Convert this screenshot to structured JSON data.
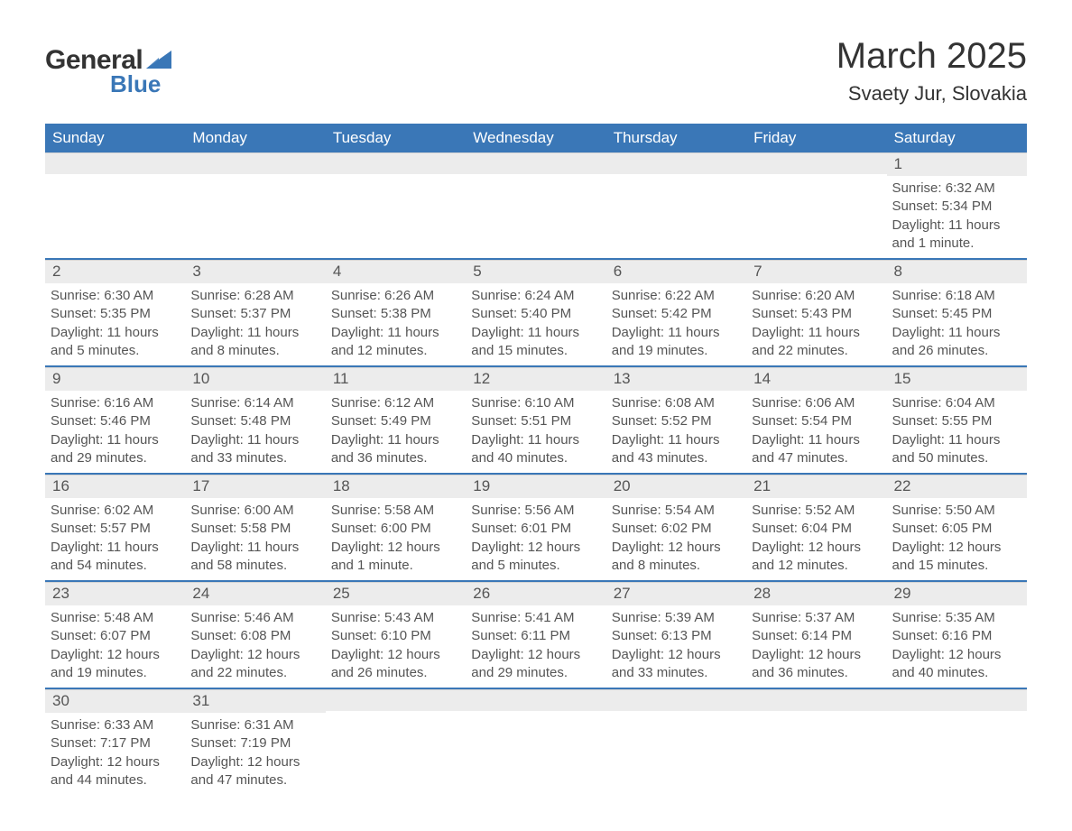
{
  "logo": {
    "text_general": "General",
    "text_blue": "Blue",
    "sail_color": "#3a77b7",
    "general_color": "#333333"
  },
  "title": "March 2025",
  "location": "Svaety Jur, Slovakia",
  "colors": {
    "header_bg": "#3a77b7",
    "header_text": "#ffffff",
    "daynum_bg": "#ececec",
    "text": "#555555",
    "week_divider": "#3a77b7",
    "background": "#ffffff"
  },
  "fonts": {
    "title_size_pt": 30,
    "location_size_pt": 17,
    "header_size_pt": 13,
    "body_size_pt": 11
  },
  "day_headers": [
    "Sunday",
    "Monday",
    "Tuesday",
    "Wednesday",
    "Thursday",
    "Friday",
    "Saturday"
  ],
  "weeks": [
    [
      {
        "empty": true
      },
      {
        "empty": true
      },
      {
        "empty": true
      },
      {
        "empty": true
      },
      {
        "empty": true
      },
      {
        "empty": true
      },
      {
        "day": "1",
        "sunrise": "6:32 AM",
        "sunset": "5:34 PM",
        "daylight": "11 hours and 1 minute."
      }
    ],
    [
      {
        "day": "2",
        "sunrise": "6:30 AM",
        "sunset": "5:35 PM",
        "daylight": "11 hours and 5 minutes."
      },
      {
        "day": "3",
        "sunrise": "6:28 AM",
        "sunset": "5:37 PM",
        "daylight": "11 hours and 8 minutes."
      },
      {
        "day": "4",
        "sunrise": "6:26 AM",
        "sunset": "5:38 PM",
        "daylight": "11 hours and 12 minutes."
      },
      {
        "day": "5",
        "sunrise": "6:24 AM",
        "sunset": "5:40 PM",
        "daylight": "11 hours and 15 minutes."
      },
      {
        "day": "6",
        "sunrise": "6:22 AM",
        "sunset": "5:42 PM",
        "daylight": "11 hours and 19 minutes."
      },
      {
        "day": "7",
        "sunrise": "6:20 AM",
        "sunset": "5:43 PM",
        "daylight": "11 hours and 22 minutes."
      },
      {
        "day": "8",
        "sunrise": "6:18 AM",
        "sunset": "5:45 PM",
        "daylight": "11 hours and 26 minutes."
      }
    ],
    [
      {
        "day": "9",
        "sunrise": "6:16 AM",
        "sunset": "5:46 PM",
        "daylight": "11 hours and 29 minutes."
      },
      {
        "day": "10",
        "sunrise": "6:14 AM",
        "sunset": "5:48 PM",
        "daylight": "11 hours and 33 minutes."
      },
      {
        "day": "11",
        "sunrise": "6:12 AM",
        "sunset": "5:49 PM",
        "daylight": "11 hours and 36 minutes."
      },
      {
        "day": "12",
        "sunrise": "6:10 AM",
        "sunset": "5:51 PM",
        "daylight": "11 hours and 40 minutes."
      },
      {
        "day": "13",
        "sunrise": "6:08 AM",
        "sunset": "5:52 PM",
        "daylight": "11 hours and 43 minutes."
      },
      {
        "day": "14",
        "sunrise": "6:06 AM",
        "sunset": "5:54 PM",
        "daylight": "11 hours and 47 minutes."
      },
      {
        "day": "15",
        "sunrise": "6:04 AM",
        "sunset": "5:55 PM",
        "daylight": "11 hours and 50 minutes."
      }
    ],
    [
      {
        "day": "16",
        "sunrise": "6:02 AM",
        "sunset": "5:57 PM",
        "daylight": "11 hours and 54 minutes."
      },
      {
        "day": "17",
        "sunrise": "6:00 AM",
        "sunset": "5:58 PM",
        "daylight": "11 hours and 58 minutes."
      },
      {
        "day": "18",
        "sunrise": "5:58 AM",
        "sunset": "6:00 PM",
        "daylight": "12 hours and 1 minute."
      },
      {
        "day": "19",
        "sunrise": "5:56 AM",
        "sunset": "6:01 PM",
        "daylight": "12 hours and 5 minutes."
      },
      {
        "day": "20",
        "sunrise": "5:54 AM",
        "sunset": "6:02 PM",
        "daylight": "12 hours and 8 minutes."
      },
      {
        "day": "21",
        "sunrise": "5:52 AM",
        "sunset": "6:04 PM",
        "daylight": "12 hours and 12 minutes."
      },
      {
        "day": "22",
        "sunrise": "5:50 AM",
        "sunset": "6:05 PM",
        "daylight": "12 hours and 15 minutes."
      }
    ],
    [
      {
        "day": "23",
        "sunrise": "5:48 AM",
        "sunset": "6:07 PM",
        "daylight": "12 hours and 19 minutes."
      },
      {
        "day": "24",
        "sunrise": "5:46 AM",
        "sunset": "6:08 PM",
        "daylight": "12 hours and 22 minutes."
      },
      {
        "day": "25",
        "sunrise": "5:43 AM",
        "sunset": "6:10 PM",
        "daylight": "12 hours and 26 minutes."
      },
      {
        "day": "26",
        "sunrise": "5:41 AM",
        "sunset": "6:11 PM",
        "daylight": "12 hours and 29 minutes."
      },
      {
        "day": "27",
        "sunrise": "5:39 AM",
        "sunset": "6:13 PM",
        "daylight": "12 hours and 33 minutes."
      },
      {
        "day": "28",
        "sunrise": "5:37 AM",
        "sunset": "6:14 PM",
        "daylight": "12 hours and 36 minutes."
      },
      {
        "day": "29",
        "sunrise": "5:35 AM",
        "sunset": "6:16 PM",
        "daylight": "12 hours and 40 minutes."
      }
    ],
    [
      {
        "day": "30",
        "sunrise": "6:33 AM",
        "sunset": "7:17 PM",
        "daylight": "12 hours and 44 minutes."
      },
      {
        "day": "31",
        "sunrise": "6:31 AM",
        "sunset": "7:19 PM",
        "daylight": "12 hours and 47 minutes."
      },
      {
        "empty": true
      },
      {
        "empty": true
      },
      {
        "empty": true
      },
      {
        "empty": true
      },
      {
        "empty": true
      }
    ]
  ],
  "labels": {
    "sunrise_prefix": "Sunrise: ",
    "sunset_prefix": "Sunset: ",
    "daylight_prefix": "Daylight: "
  }
}
